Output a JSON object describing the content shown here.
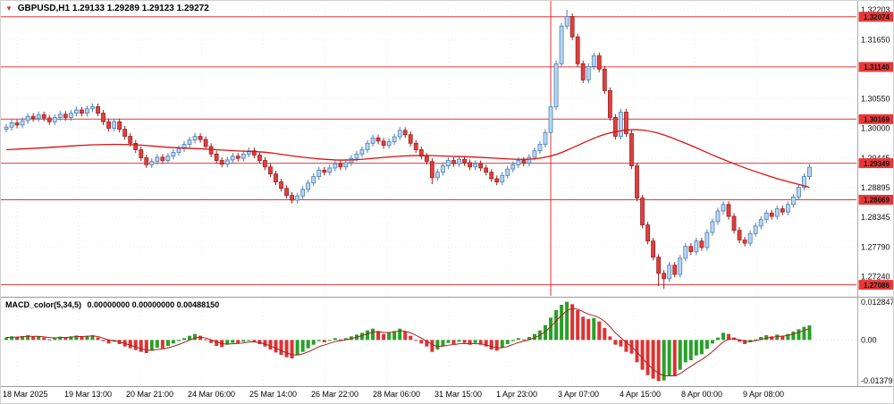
{
  "title": {
    "symbol": "GBPUSD,H1",
    "ohlc": "1.29133 1.29289 1.29123 1.29272"
  },
  "macd_header": {
    "name": "MACD_color(5,34,5)",
    "values": "0.00000000 0.00000000 0.00488150"
  },
  "price_axis": {
    "ticks": [
      "1.32203",
      "1.31650",
      "1.30550",
      "1.30000",
      "1.29445",
      "1.28895",
      "1.28345",
      "1.27790",
      "1.27240"
    ]
  },
  "macd_axis": {
    "max": "0.0128479",
    "zero": "0.00",
    "min": "-0.0137935"
  },
  "time_axis": {
    "labels": [
      {
        "text": "18 Mar 2025",
        "x": 2
      },
      {
        "text": "19 Mar 13:00",
        "x": 71
      },
      {
        "text": "20 Mar 21:00",
        "x": 140
      },
      {
        "text": "24 Mar 06:00",
        "x": 209
      },
      {
        "text": "25 Mar 14:00",
        "x": 278
      },
      {
        "text": "26 Mar 22:00",
        "x": 347
      },
      {
        "text": "28 Mar 06:00",
        "x": 416
      },
      {
        "text": "31 Mar 15:00",
        "x": 485
      },
      {
        "text": "1 Apr 23:00",
        "x": 554
      },
      {
        "text": "3 Apr 07:00",
        "x": 623
      },
      {
        "text": "4 Apr 15:00",
        "x": 692
      },
      {
        "text": "8 Apr 00:00",
        "x": 761
      },
      {
        "text": "9 Apr 08:00",
        "x": 830
      }
    ]
  },
  "palette": {
    "up_fill": "#b9d7f0",
    "up_stroke": "#4a7fb5",
    "down_fill": "#e04040",
    "down_stroke": "#9e1f1f",
    "level": "#e83737",
    "badge_text": "#ffffff",
    "ma": "#dd1111",
    "vline": "#e03030",
    "macd_up": "#27a227",
    "macd_down": "#dd3333",
    "macd_line": "#aa2222",
    "grid": "#ececec",
    "axis_line": "#aaaaaa"
  },
  "chart_data": [
    {
      "type": "candlestick",
      "title": "GBPUSD H1 price",
      "ylim": [
        1.2688,
        1.3237
      ],
      "first_open": 1.2998,
      "wick": 0.0006,
      "closes": [
        1.3002,
        1.301,
        1.3006,
        1.3014,
        1.3022,
        1.3018,
        1.3025,
        1.3019,
        1.3012,
        1.302,
        1.3026,
        1.302,
        1.3028,
        1.3034,
        1.3028,
        1.3036,
        1.304,
        1.3028,
        1.3012,
        1.3,
        1.3012,
        1.2998,
        1.2985,
        1.2972,
        1.296,
        1.2945,
        1.2932,
        1.2938,
        1.2946,
        1.294,
        1.2948,
        1.2955,
        1.2962,
        1.297,
        1.2978,
        1.2985,
        1.2979,
        1.2966,
        1.2952,
        1.294,
        1.2933,
        1.2941,
        1.2948,
        1.2944,
        1.2952,
        1.2958,
        1.295,
        1.294,
        1.2928,
        1.2915,
        1.29,
        1.2888,
        1.2875,
        1.2866,
        1.2874,
        1.2886,
        1.2898,
        1.291,
        1.2922,
        1.2918,
        1.2926,
        1.2934,
        1.2928,
        1.2936,
        1.2944,
        1.2952,
        1.296,
        1.2972,
        1.2982,
        1.2976,
        1.2968,
        1.2975,
        1.2984,
        1.2996,
        1.2988,
        1.2972,
        1.296,
        1.2948,
        1.2938,
        1.2908,
        1.2918,
        1.293,
        1.294,
        1.2934,
        1.2942,
        1.2936,
        1.2928,
        1.2934,
        1.2926,
        1.2918,
        1.2906,
        1.29,
        1.2912,
        1.2924,
        1.2932,
        1.294,
        1.2935,
        1.2946,
        1.2958,
        1.297,
        1.2992,
        1.304,
        1.312,
        1.319,
        1.3208,
        1.317,
        1.312,
        1.309,
        1.3115,
        1.3135,
        1.311,
        1.307,
        1.302,
        1.2985,
        1.303,
        1.299,
        1.293,
        1.287,
        1.282,
        1.279,
        1.276,
        1.273,
        1.272,
        1.2745,
        1.2728,
        1.2758,
        1.278,
        1.277,
        1.279,
        1.2778,
        1.2806,
        1.2826,
        1.2846,
        1.2858,
        1.2836,
        1.281,
        1.2792,
        1.2786,
        1.2804,
        1.2818,
        1.283,
        1.2842,
        1.2836,
        1.285,
        1.2844,
        1.2858,
        1.2872,
        1.289,
        1.291,
        1.29272
      ],
      "overrides": {
        "79": {
          "l": 1.2896
        },
        "104": {
          "h": 1.32203
        },
        "121": {
          "l": 1.2706
        },
        "122": {
          "l": 1.2701
        }
      },
      "levels": [
        1.32074,
        1.3114,
        1.30169,
        1.29349,
        1.28669,
        1.27086
      ],
      "vline_index": 101,
      "ma_points": [
        [
          0,
          1.296
        ],
        [
          8,
          1.2964
        ],
        [
          16,
          1.297
        ],
        [
          24,
          1.297
        ],
        [
          30,
          1.2964
        ],
        [
          36,
          1.2962
        ],
        [
          42,
          1.2958
        ],
        [
          48,
          1.2956
        ],
        [
          52,
          1.295
        ],
        [
          58,
          1.2942
        ],
        [
          64,
          1.294
        ],
        [
          70,
          1.2946
        ],
        [
          76,
          1.295
        ],
        [
          82,
          1.2948
        ],
        [
          88,
          1.2946
        ],
        [
          94,
          1.2942
        ],
        [
          98,
          1.2942
        ],
        [
          102,
          1.295
        ],
        [
          106,
          1.2968
        ],
        [
          110,
          1.2986
        ],
        [
          113,
          1.2994
        ],
        [
          116,
          1.2998
        ],
        [
          119,
          1.2996
        ],
        [
          122,
          1.2988
        ],
        [
          125,
          1.2976
        ],
        [
          128,
          1.2964
        ],
        [
          131,
          1.295
        ],
        [
          134,
          1.2938
        ],
        [
          137,
          1.2926
        ],
        [
          140,
          1.2916
        ],
        [
          143,
          1.2906
        ],
        [
          146,
          1.2898
        ],
        [
          149,
          1.289
        ]
      ]
    },
    {
      "type": "bar",
      "title": "MACD_color(5,34,5)",
      "ylim": [
        -0.0152,
        0.0142
      ],
      "values": [
        0.0008,
        0.0012,
        0.0009,
        0.0013,
        0.0016,
        0.0011,
        0.0013,
        0.0008,
        0.0002,
        0.0006,
        0.0011,
        0.0008,
        0.0012,
        0.0015,
        0.0011,
        0.0014,
        0.0016,
        0.0008,
        -0.0004,
        -0.0012,
        -0.0006,
        -0.0014,
        -0.0022,
        -0.0028,
        -0.0034,
        -0.004,
        -0.0044,
        -0.0036,
        -0.0026,
        -0.0028,
        -0.002,
        -0.0012,
        -0.0004,
        0.0006,
        0.0014,
        0.002,
        0.0014,
        0.0002,
        -0.001,
        -0.002,
        -0.0024,
        -0.0016,
        -0.001,
        -0.0012,
        -0.0006,
        0.0,
        -0.0006,
        -0.0014,
        -0.0022,
        -0.0032,
        -0.0042,
        -0.005,
        -0.0058,
        -0.0062,
        -0.0052,
        -0.004,
        -0.0028,
        -0.0016,
        -0.0004,
        -0.0008,
        0.0,
        0.0006,
        0.0002,
        0.0006,
        0.0012,
        0.0018,
        0.0024,
        0.0032,
        0.0038,
        0.003,
        0.002,
        0.0024,
        0.003,
        0.0038,
        0.0028,
        0.0014,
        0.0,
        -0.0012,
        -0.0022,
        -0.004,
        -0.0032,
        -0.002,
        -0.001,
        -0.0014,
        -0.0006,
        -0.001,
        -0.0016,
        -0.001,
        -0.0016,
        -0.0022,
        -0.0032,
        -0.0036,
        -0.0026,
        -0.0014,
        -0.0004,
        0.0006,
        0.0002,
        0.001,
        0.002,
        0.0032,
        0.005,
        0.0075,
        0.01,
        0.0118,
        0.0128,
        0.012,
        0.01,
        0.0078,
        0.007,
        0.0074,
        0.0062,
        0.004,
        0.0012,
        -0.0016,
        -0.0022,
        -0.004,
        -0.0046,
        -0.0075,
        -0.01,
        -0.0118,
        -0.013,
        -0.0138,
        -0.0136,
        -0.012,
        -0.0122,
        -0.01,
        -0.0075,
        -0.0068,
        -0.0052,
        -0.0048,
        -0.003,
        -0.0012,
        0.0008,
        0.0024,
        0.002,
        0.0008,
        -0.0006,
        -0.0014,
        -0.0008,
        0.0002,
        0.001,
        0.0016,
        0.0012,
        0.0018,
        0.0014,
        0.002,
        0.0028,
        0.0036,
        0.0044,
        0.0049
      ]
    }
  ]
}
